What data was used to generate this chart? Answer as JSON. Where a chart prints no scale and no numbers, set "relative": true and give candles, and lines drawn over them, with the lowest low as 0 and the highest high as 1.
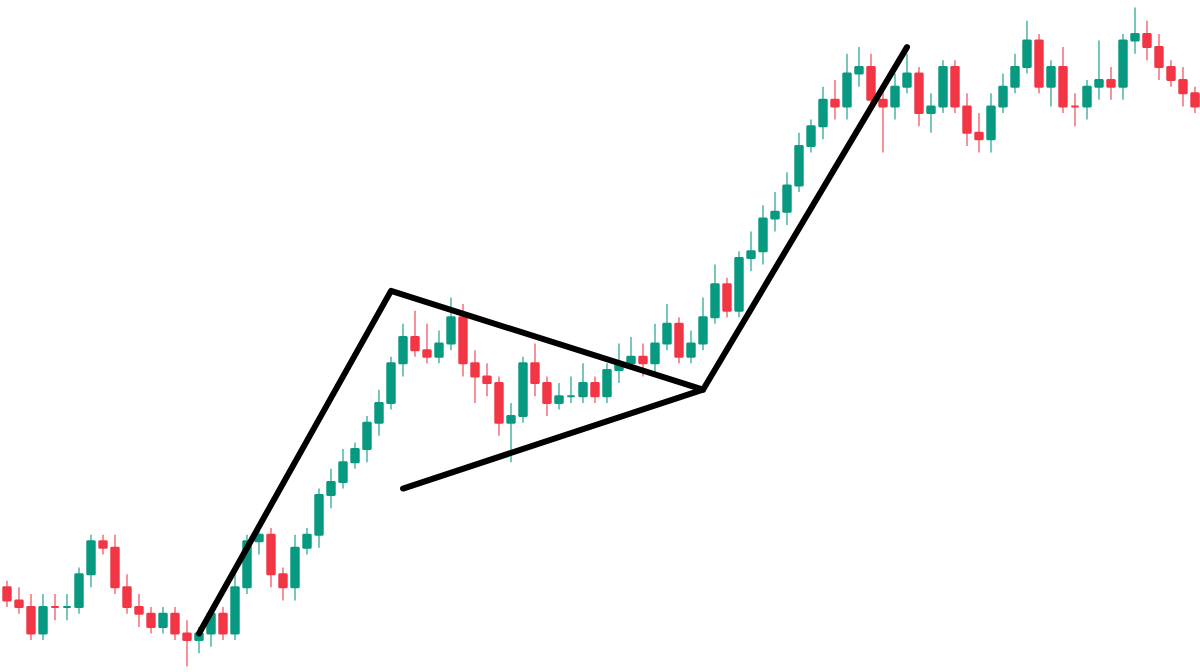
{
  "chart_data": {
    "type": "candlestick",
    "relative": true,
    "grid": false,
    "categories": [
      null,
      null,
      null,
      null,
      null,
      null,
      null,
      null,
      null,
      null,
      null,
      null,
      null,
      null,
      null,
      null,
      null,
      null,
      null,
      null,
      null,
      null,
      null,
      null,
      null,
      null,
      null,
      null,
      null,
      null,
      null,
      null,
      null,
      null,
      null,
      null,
      null,
      null,
      null,
      null,
      null,
      null,
      null,
      null,
      null,
      null,
      null,
      null,
      null,
      null,
      null,
      null,
      null,
      null,
      null,
      null,
      null,
      null,
      null,
      null,
      null,
      null,
      null,
      null,
      null,
      null,
      null,
      null,
      null,
      null,
      null,
      null,
      null,
      null,
      null,
      null,
      null,
      null,
      null,
      null,
      null,
      null,
      null,
      null,
      null,
      null,
      null,
      null,
      null,
      null,
      null,
      null,
      null,
      null,
      null,
      null,
      null,
      null,
      null,
      null
    ],
    "ohlc": [
      [
        0.12,
        0.13,
        0.09,
        0.1
      ],
      [
        0.1,
        0.12,
        0.08,
        0.09
      ],
      [
        0.09,
        0.11,
        0.04,
        0.05
      ],
      [
        0.05,
        0.11,
        0.04,
        0.09
      ],
      [
        0.09,
        0.11,
        0.07,
        0.09
      ],
      [
        0.09,
        0.11,
        0.07,
        0.09
      ],
      [
        0.09,
        0.15,
        0.08,
        0.14
      ],
      [
        0.14,
        0.2,
        0.12,
        0.19
      ],
      [
        0.19,
        0.2,
        0.17,
        0.18
      ],
      [
        0.18,
        0.2,
        0.11,
        0.12
      ],
      [
        0.12,
        0.14,
        0.08,
        0.09
      ],
      [
        0.09,
        0.11,
        0.06,
        0.08
      ],
      [
        0.08,
        0.09,
        0.05,
        0.06
      ],
      [
        0.06,
        0.09,
        0.05,
        0.08
      ],
      [
        0.08,
        0.09,
        0.04,
        0.05
      ],
      [
        0.05,
        0.07,
        0.0,
        0.04
      ],
      [
        0.04,
        0.06,
        0.02,
        0.05
      ],
      [
        0.05,
        0.09,
        0.03,
        0.08
      ],
      [
        0.08,
        0.09,
        0.04,
        0.05
      ],
      [
        0.05,
        0.14,
        0.04,
        0.12
      ],
      [
        0.12,
        0.2,
        0.11,
        0.19
      ],
      [
        0.19,
        0.21,
        0.17,
        0.2
      ],
      [
        0.2,
        0.21,
        0.12,
        0.14
      ],
      [
        0.14,
        0.15,
        0.1,
        0.12
      ],
      [
        0.12,
        0.2,
        0.1,
        0.18
      ],
      [
        0.18,
        0.21,
        0.17,
        0.2
      ],
      [
        0.2,
        0.27,
        0.18,
        0.26
      ],
      [
        0.26,
        0.3,
        0.24,
        0.28
      ],
      [
        0.28,
        0.33,
        0.27,
        0.31
      ],
      [
        0.31,
        0.34,
        0.3,
        0.33
      ],
      [
        0.33,
        0.38,
        0.31,
        0.37
      ],
      [
        0.37,
        0.42,
        0.35,
        0.4
      ],
      [
        0.4,
        0.47,
        0.39,
        0.46
      ],
      [
        0.46,
        0.52,
        0.44,
        0.5
      ],
      [
        0.5,
        0.54,
        0.47,
        0.48
      ],
      [
        0.48,
        0.52,
        0.46,
        0.47
      ],
      [
        0.47,
        0.51,
        0.46,
        0.49
      ],
      [
        0.49,
        0.56,
        0.48,
        0.53
      ],
      [
        0.53,
        0.55,
        0.44,
        0.46
      ],
      [
        0.46,
        0.48,
        0.4,
        0.44
      ],
      [
        0.44,
        0.46,
        0.41,
        0.43
      ],
      [
        0.43,
        0.44,
        0.35,
        0.37
      ],
      [
        0.37,
        0.4,
        0.31,
        0.38
      ],
      [
        0.38,
        0.47,
        0.37,
        0.46
      ],
      [
        0.46,
        0.49,
        0.41,
        0.43
      ],
      [
        0.43,
        0.44,
        0.38,
        0.4
      ],
      [
        0.4,
        0.43,
        0.39,
        0.41
      ],
      [
        0.41,
        0.44,
        0.4,
        0.41
      ],
      [
        0.41,
        0.46,
        0.4,
        0.43
      ],
      [
        0.43,
        0.44,
        0.4,
        0.41
      ],
      [
        0.41,
        0.46,
        0.4,
        0.45
      ],
      [
        0.45,
        0.49,
        0.43,
        0.46
      ],
      [
        0.46,
        0.5,
        0.45,
        0.47
      ],
      [
        0.47,
        0.49,
        0.44,
        0.46
      ],
      [
        0.46,
        0.52,
        0.44,
        0.49
      ],
      [
        0.49,
        0.55,
        0.48,
        0.52
      ],
      [
        0.52,
        0.53,
        0.46,
        0.47
      ],
      [
        0.47,
        0.51,
        0.46,
        0.49
      ],
      [
        0.49,
        0.56,
        0.48,
        0.53
      ],
      [
        0.53,
        0.61,
        0.52,
        0.58
      ],
      [
        0.58,
        0.59,
        0.53,
        0.54
      ],
      [
        0.54,
        0.63,
        0.53,
        0.62
      ],
      [
        0.62,
        0.66,
        0.6,
        0.63
      ],
      [
        0.63,
        0.7,
        0.61,
        0.68
      ],
      [
        0.68,
        0.72,
        0.66,
        0.69
      ],
      [
        0.69,
        0.75,
        0.67,
        0.73
      ],
      [
        0.73,
        0.81,
        0.72,
        0.79
      ],
      [
        0.79,
        0.83,
        0.78,
        0.82
      ],
      [
        0.82,
        0.88,
        0.8,
        0.86
      ],
      [
        0.86,
        0.89,
        0.83,
        0.85
      ],
      [
        0.85,
        0.93,
        0.83,
        0.9
      ],
      [
        0.9,
        0.94,
        0.88,
        0.91
      ],
      [
        0.91,
        0.93,
        0.85,
        0.86
      ],
      [
        0.86,
        0.88,
        0.78,
        0.85
      ],
      [
        0.85,
        0.9,
        0.83,
        0.88
      ],
      [
        0.88,
        0.93,
        0.87,
        0.9
      ],
      [
        0.9,
        0.91,
        0.82,
        0.84
      ],
      [
        0.84,
        0.87,
        0.81,
        0.85
      ],
      [
        0.85,
        0.92,
        0.84,
        0.91
      ],
      [
        0.91,
        0.92,
        0.84,
        0.85
      ],
      [
        0.85,
        0.87,
        0.79,
        0.81
      ],
      [
        0.81,
        0.84,
        0.78,
        0.8
      ],
      [
        0.8,
        0.87,
        0.78,
        0.85
      ],
      [
        0.85,
        0.9,
        0.84,
        0.88
      ],
      [
        0.88,
        0.93,
        0.87,
        0.91
      ],
      [
        0.91,
        0.98,
        0.9,
        0.95
      ],
      [
        0.95,
        0.96,
        0.87,
        0.88
      ],
      [
        0.88,
        0.92,
        0.85,
        0.91
      ],
      [
        0.91,
        0.94,
        0.84,
        0.85
      ],
      [
        0.85,
        0.87,
        0.82,
        0.85
      ],
      [
        0.85,
        0.89,
        0.83,
        0.88
      ],
      [
        0.88,
        0.95,
        0.86,
        0.89
      ],
      [
        0.89,
        0.91,
        0.86,
        0.88
      ],
      [
        0.88,
        0.96,
        0.86,
        0.95
      ],
      [
        0.95,
        1.0,
        0.93,
        0.96
      ],
      [
        0.96,
        0.98,
        0.92,
        0.94
      ],
      [
        0.94,
        0.96,
        0.89,
        0.91
      ],
      [
        0.91,
        0.92,
        0.88,
        0.89
      ],
      [
        0.89,
        0.91,
        0.85,
        0.87
      ],
      [
        0.87,
        0.88,
        0.84,
        0.85
      ]
    ],
    "colors": [
      "#f23645",
      "#f23645",
      "#f23645",
      "#089981",
      "#f23645",
      "#089981",
      "#089981",
      "#089981",
      "#f23645",
      "#f23645",
      "#f23645",
      "#f23645",
      "#f23645",
      "#089981",
      "#f23645",
      "#f23645",
      "#089981",
      "#089981",
      "#f23645",
      "#089981",
      "#089981",
      "#089981",
      "#f23645",
      "#f23645",
      "#089981",
      "#089981",
      "#089981",
      "#089981",
      "#089981",
      "#089981",
      "#089981",
      "#089981",
      "#089981",
      "#089981",
      "#f23645",
      "#f23645",
      "#089981",
      "#089981",
      "#f23645",
      "#f23645",
      "#f23645",
      "#f23645",
      "#089981",
      "#089981",
      "#f23645",
      "#f23645",
      "#089981",
      "#089981",
      "#089981",
      "#f23645",
      "#089981",
      "#089981",
      "#089981",
      "#f23645",
      "#089981",
      "#089981",
      "#f23645",
      "#089981",
      "#089981",
      "#089981",
      "#f23645",
      "#089981",
      "#089981",
      "#089981",
      "#089981",
      "#089981",
      "#089981",
      "#089981",
      "#089981",
      "#f23645",
      "#089981",
      "#089981",
      "#f23645",
      "#f23645",
      "#089981",
      "#089981",
      "#f23645",
      "#089981",
      "#089981",
      "#f23645",
      "#f23645",
      "#f23645",
      "#089981",
      "#089981",
      "#089981",
      "#089981",
      "#f23645",
      "#089981",
      "#f23645",
      "#f23645",
      "#089981",
      "#089981",
      "#f23645",
      "#089981",
      "#089981",
      "#f23645",
      "#f23645",
      "#f23645",
      "#f23645",
      "#f23645"
    ],
    "series": [
      {
        "type": "line",
        "color": "#000000",
        "values": [
          null,
          null,
          null,
          null,
          null,
          null,
          null,
          null,
          null,
          null,
          null,
          null,
          null,
          null,
          null,
          null,
          0.05,
          null,
          null,
          null,
          null,
          null,
          null,
          null,
          null,
          null,
          null,
          null,
          null,
          null,
          null,
          null,
          0.57,
          null,
          null,
          null,
          null,
          null,
          null,
          null,
          null,
          null,
          null,
          null,
          null,
          null,
          null,
          null,
          null,
          null,
          null,
          null,
          null,
          null,
          null,
          null,
          null,
          null,
          0.42,
          null,
          null,
          null,
          null,
          null,
          null,
          null,
          null,
          null,
          null,
          null,
          null,
          null,
          null,
          null,
          null,
          null,
          null,
          null,
          null,
          null,
          null,
          null,
          null,
          null,
          null,
          null,
          null,
          null,
          null,
          null,
          null,
          null,
          null,
          null,
          null,
          null,
          null,
          null,
          null,
          null
        ]
      },
      {
        "type": "line",
        "color": "#000000",
        "values": [
          null,
          null,
          null,
          null,
          null,
          null,
          null,
          null,
          null,
          null,
          null,
          null,
          null,
          null,
          null,
          null,
          null,
          null,
          null,
          null,
          null,
          null,
          null,
          null,
          null,
          null,
          null,
          null,
          null,
          null,
          null,
          null,
          null,
          0.27,
          null,
          null,
          null,
          null,
          null,
          null,
          null,
          null,
          null,
          null,
          null,
          null,
          null,
          null,
          null,
          null,
          null,
          null,
          null,
          null,
          null,
          null,
          null,
          null,
          0.42,
          null,
          null,
          null,
          null,
          null,
          null,
          null,
          null,
          null,
          null,
          null,
          null,
          null,
          null,
          null,
          null,
          0.94,
          null,
          null,
          null,
          null,
          null,
          null,
          null,
          null,
          null,
          null,
          null,
          null,
          null,
          null,
          null,
          null,
          null,
          null,
          null,
          null,
          null,
          null,
          null,
          null
        ]
      }
    ]
  }
}
